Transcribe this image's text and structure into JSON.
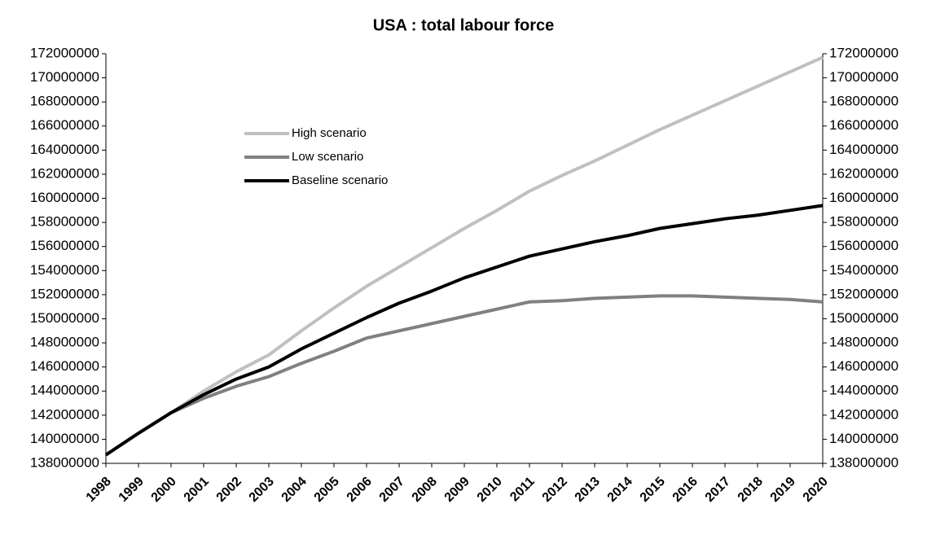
{
  "chart_data": {
    "type": "line",
    "title": "USA : total labour force",
    "categories": [
      "1998",
      "1999",
      "2000",
      "2001",
      "2002",
      "2003",
      "2004",
      "2005",
      "2006",
      "2007",
      "2008",
      "2009",
      "2010",
      "2011",
      "2012",
      "2013",
      "2014",
      "2015",
      "2016",
      "2017",
      "2018",
      "2019",
      "2020"
    ],
    "series": [
      {
        "name": "High scenario",
        "color": "#c0c0c0",
        "values": [
          138700000,
          140500000,
          142200000,
          144000000,
          145600000,
          147000000,
          149000000,
          150900000,
          152700000,
          154300000,
          155900000,
          157500000,
          159000000,
          160600000,
          161900000,
          163100000,
          164400000,
          165700000,
          166900000,
          168100000,
          169300000,
          170500000,
          171700000
        ]
      },
      {
        "name": "Low scenario",
        "color": "#808080",
        "values": [
          138700000,
          140500000,
          142200000,
          143400000,
          144400000,
          145200000,
          146300000,
          147300000,
          148400000,
          149000000,
          149600000,
          150200000,
          150800000,
          151400000,
          151500000,
          151700000,
          151800000,
          151900000,
          151900000,
          151800000,
          151700000,
          151600000,
          151400000
        ]
      },
      {
        "name": "Baseline scenario",
        "color": "#000000",
        "values": [
          138700000,
          140500000,
          142200000,
          143700000,
          145000000,
          146000000,
          147500000,
          148800000,
          150100000,
          151300000,
          152300000,
          153400000,
          154300000,
          155200000,
          155800000,
          156400000,
          156900000,
          157500000,
          157900000,
          158300000,
          158600000,
          159000000,
          159400000
        ]
      }
    ],
    "ylim": [
      138000000,
      172000000
    ],
    "yticks": [
      138000000,
      140000000,
      142000000,
      144000000,
      146000000,
      148000000,
      150000000,
      152000000,
      154000000,
      156000000,
      158000000,
      160000000,
      162000000,
      164000000,
      166000000,
      168000000,
      170000000,
      172000000
    ],
    "y2lim": [
      138000000,
      172000000
    ],
    "y2ticks": [
      138000000,
      140000000,
      142000000,
      144000000,
      146000000,
      148000000,
      150000000,
      152000000,
      154000000,
      156000000,
      158000000,
      160000000,
      162000000,
      164000000,
      166000000,
      168000000,
      170000000,
      172000000
    ],
    "grid": false,
    "legend_position": "upper-left"
  }
}
